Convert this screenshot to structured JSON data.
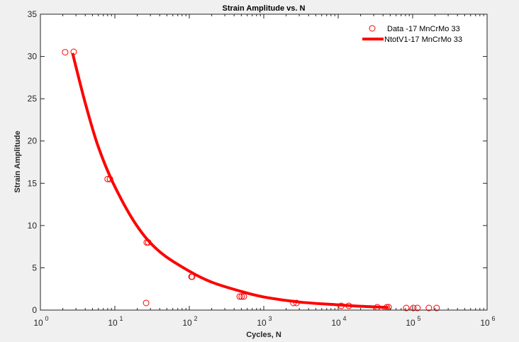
{
  "chart_data": {
    "type": "scatter",
    "title": "Strain Amplitude vs. N",
    "xlabel": "Cycles, N",
    "ylabel": "Strain Amplitude",
    "xscale": "log",
    "xlim": [
      1,
      1000000
    ],
    "ylim": [
      0,
      35
    ],
    "x_ticks": [
      {
        "base": "10",
        "exp": "0",
        "value": 1
      },
      {
        "base": "10",
        "exp": "1",
        "value": 10
      },
      {
        "base": "10",
        "exp": "2",
        "value": 100
      },
      {
        "base": "10",
        "exp": "3",
        "value": 1000
      },
      {
        "base": "10",
        "exp": "4",
        "value": 10000
      },
      {
        "base": "10",
        "exp": "5",
        "value": 100000
      },
      {
        "base": "10",
        "exp": "6",
        "value": 1000000
      }
    ],
    "y_ticks": [
      "0",
      "5",
      "10",
      "15",
      "20",
      "25",
      "30",
      "35"
    ],
    "grid": false,
    "legend_position": "upper right",
    "color": "#ff0000",
    "series": [
      {
        "name": "Data -17 MnCrMo 33",
        "style": "markers-open-circle",
        "points": [
          [
            2.15,
            30.5
          ],
          [
            2.8,
            30.55
          ],
          [
            8.0,
            15.5
          ],
          [
            8.6,
            15.5
          ],
          [
            26.8,
            8.0
          ],
          [
            28.1,
            8.0
          ],
          [
            26.3,
            0.84
          ],
          [
            107,
            3.95
          ],
          [
            109,
            3.95
          ],
          [
            475,
            1.6
          ],
          [
            505,
            1.6
          ],
          [
            540,
            1.6
          ],
          [
            2500,
            0.84
          ],
          [
            2750,
            0.84
          ],
          [
            11000,
            0.5
          ],
          [
            13900,
            0.5
          ],
          [
            33500,
            0.34
          ],
          [
            45000,
            0.34
          ],
          [
            47600,
            0.34
          ],
          [
            82000,
            0.25
          ],
          [
            102000,
            0.25
          ],
          [
            116000,
            0.25
          ],
          [
            165000,
            0.25
          ],
          [
            210000,
            0.25
          ]
        ]
      },
      {
        "name": "NtotV1-17 MnCrMo 33",
        "style": "line-thick",
        "points": [
          [
            2.7,
            30.4
          ],
          [
            4,
            24.5
          ],
          [
            6,
            19.3
          ],
          [
            10,
            14.6
          ],
          [
            20,
            9.9
          ],
          [
            40,
            6.9
          ],
          [
            100,
            4.6
          ],
          [
            200,
            3.3
          ],
          [
            500,
            2.2
          ],
          [
            1000,
            1.55
          ],
          [
            3000,
            0.95
          ],
          [
            10000,
            0.62
          ],
          [
            20000,
            0.45
          ],
          [
            47600,
            0.3
          ]
        ]
      }
    ]
  }
}
